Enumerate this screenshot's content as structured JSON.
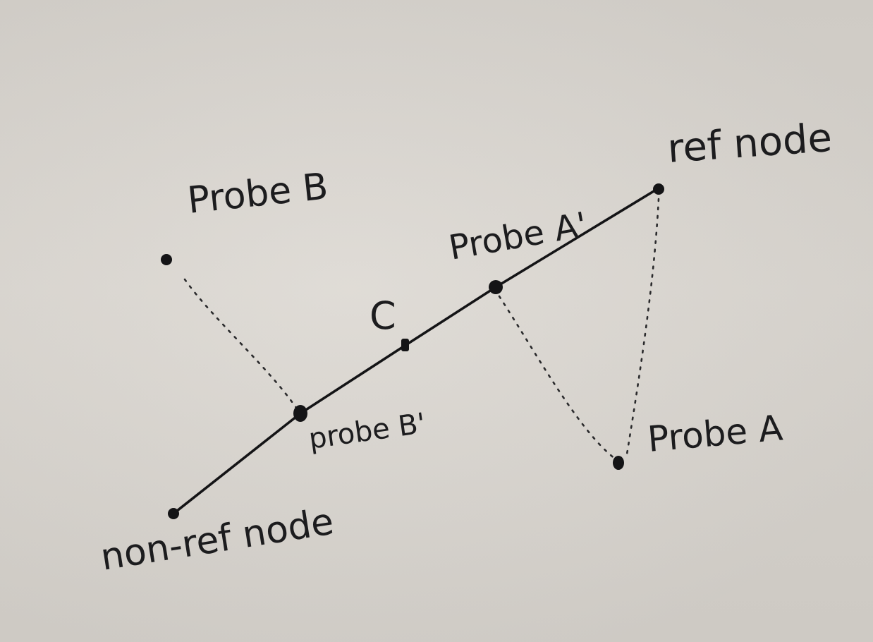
{
  "diagram": {
    "labels": {
      "ref_node": "ref node",
      "non_ref_node": "non-ref node",
      "probe_a": "Probe A",
      "probe_a_prime": "Probe A'",
      "probe_b": "Probe B",
      "probe_b_prime": "probe B'",
      "c": "C"
    },
    "edges": [
      {
        "from": "non-ref node",
        "to": "probe B'",
        "style": "solid"
      },
      {
        "from": "probe B'",
        "to": "C",
        "style": "solid"
      },
      {
        "from": "C",
        "to": "Probe A'",
        "style": "solid"
      },
      {
        "from": "Probe A'",
        "to": "ref node",
        "style": "solid"
      },
      {
        "from": "Probe B",
        "to": "probe B'",
        "style": "dotted"
      },
      {
        "from": "Probe A'",
        "to": "Probe A",
        "style": "dotted"
      },
      {
        "from": "ref node",
        "to": "Probe A",
        "style": "dotted"
      }
    ],
    "colors": {
      "ink": "#141416",
      "paper": "#d9d5cf"
    }
  }
}
